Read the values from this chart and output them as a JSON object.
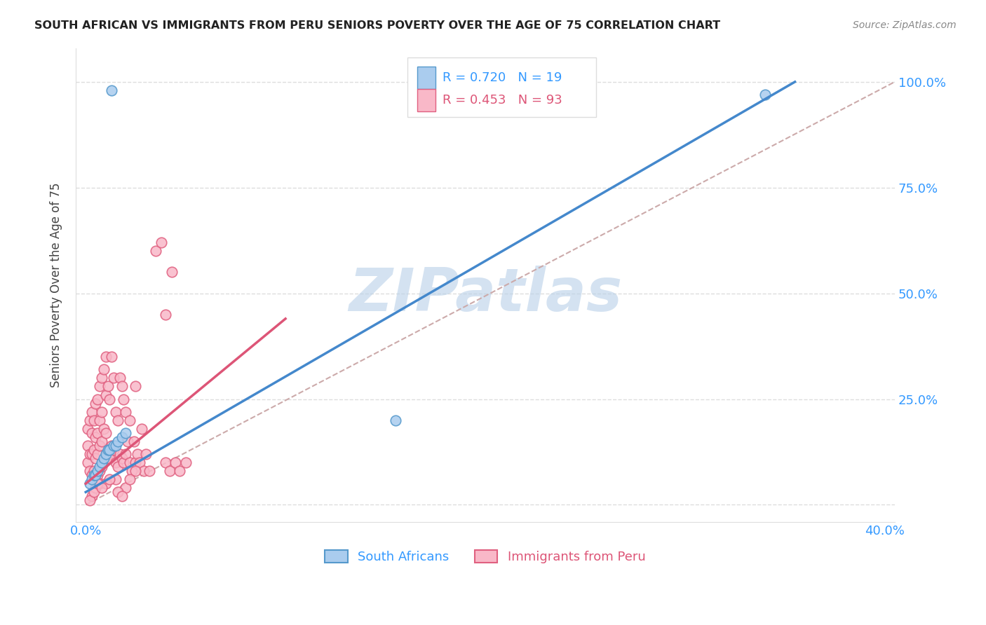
{
  "title": "SOUTH AFRICAN VS IMMIGRANTS FROM PERU SENIORS POVERTY OVER THE AGE OF 75 CORRELATION CHART",
  "source": "Source: ZipAtlas.com",
  "ylabel": "Seniors Poverty Over the Age of 75",
  "legend_label_blue": "R = 0.720   N = 19",
  "legend_label_pink": "R = 0.453   N = 93",
  "legend_bottom_blue": "South Africans",
  "legend_bottom_pink": "Immigrants from Peru",
  "blue_fill_color": "#aaccee",
  "pink_fill_color": "#f9b8c8",
  "blue_edge_color": "#5599cc",
  "pink_edge_color": "#e06080",
  "blue_line_color": "#4488cc",
  "pink_line_color": "#dd5577",
  "ref_line_color": "#ccaaaa",
  "watermark": "ZIPatlas",
  "blue_scatter_x": [
    0.013,
    0.002,
    0.003,
    0.004,
    0.005,
    0.006,
    0.007,
    0.008,
    0.009,
    0.01,
    0.011,
    0.012,
    0.014,
    0.015,
    0.016,
    0.018,
    0.02,
    0.155,
    0.34
  ],
  "blue_scatter_y": [
    0.98,
    0.05,
    0.06,
    0.07,
    0.07,
    0.08,
    0.09,
    0.1,
    0.11,
    0.12,
    0.13,
    0.13,
    0.14,
    0.14,
    0.15,
    0.16,
    0.17,
    0.2,
    0.97
  ],
  "pink_scatter_x": [
    0.001,
    0.001,
    0.001,
    0.002,
    0.002,
    0.002,
    0.003,
    0.003,
    0.003,
    0.003,
    0.004,
    0.004,
    0.004,
    0.005,
    0.005,
    0.005,
    0.005,
    0.006,
    0.006,
    0.006,
    0.006,
    0.007,
    0.007,
    0.007,
    0.007,
    0.008,
    0.008,
    0.008,
    0.008,
    0.009,
    0.009,
    0.009,
    0.01,
    0.01,
    0.01,
    0.01,
    0.011,
    0.011,
    0.012,
    0.012,
    0.013,
    0.013,
    0.014,
    0.014,
    0.015,
    0.015,
    0.016,
    0.016,
    0.017,
    0.017,
    0.018,
    0.018,
    0.019,
    0.019,
    0.02,
    0.02,
    0.021,
    0.022,
    0.022,
    0.023,
    0.024,
    0.025,
    0.025,
    0.026,
    0.027,
    0.028,
    0.029,
    0.03,
    0.032,
    0.035,
    0.038,
    0.04,
    0.04,
    0.042,
    0.043,
    0.045,
    0.047,
    0.05,
    0.003,
    0.005,
    0.007,
    0.01,
    0.015,
    0.02,
    0.025,
    0.002,
    0.004,
    0.006,
    0.008,
    0.012,
    0.016,
    0.018,
    0.022
  ],
  "pink_scatter_y": [
    0.1,
    0.14,
    0.18,
    0.08,
    0.12,
    0.2,
    0.07,
    0.12,
    0.17,
    0.22,
    0.08,
    0.13,
    0.2,
    0.06,
    0.11,
    0.16,
    0.24,
    0.07,
    0.12,
    0.17,
    0.25,
    0.08,
    0.14,
    0.2,
    0.28,
    0.09,
    0.15,
    0.22,
    0.3,
    0.1,
    0.18,
    0.32,
    0.11,
    0.17,
    0.26,
    0.35,
    0.12,
    0.28,
    0.11,
    0.25,
    0.14,
    0.35,
    0.13,
    0.3,
    0.1,
    0.22,
    0.09,
    0.2,
    0.12,
    0.3,
    0.11,
    0.28,
    0.1,
    0.25,
    0.12,
    0.22,
    0.15,
    0.1,
    0.2,
    0.08,
    0.15,
    0.1,
    0.28,
    0.12,
    0.1,
    0.18,
    0.08,
    0.12,
    0.08,
    0.6,
    0.62,
    0.45,
    0.1,
    0.08,
    0.55,
    0.1,
    0.08,
    0.1,
    0.02,
    0.04,
    0.05,
    0.05,
    0.06,
    0.04,
    0.08,
    0.01,
    0.03,
    0.05,
    0.04,
    0.06,
    0.03,
    0.02,
    0.06
  ],
  "xlim": [
    -0.005,
    0.405
  ],
  "ylim": [
    -0.04,
    1.08
  ],
  "x_tick_positions": [
    0.0,
    0.1,
    0.2,
    0.3,
    0.4
  ],
  "y_tick_positions": [
    0.0,
    0.25,
    0.5,
    0.75,
    1.0
  ],
  "blue_line_x": [
    0.0,
    0.355
  ],
  "blue_line_y": [
    0.03,
    1.0
  ],
  "pink_line_x": [
    0.0,
    0.1
  ],
  "pink_line_y": [
    0.05,
    0.44
  ],
  "ref_line_x": [
    0.0,
    0.405
  ],
  "ref_line_y": [
    0.0,
    1.0
  ]
}
